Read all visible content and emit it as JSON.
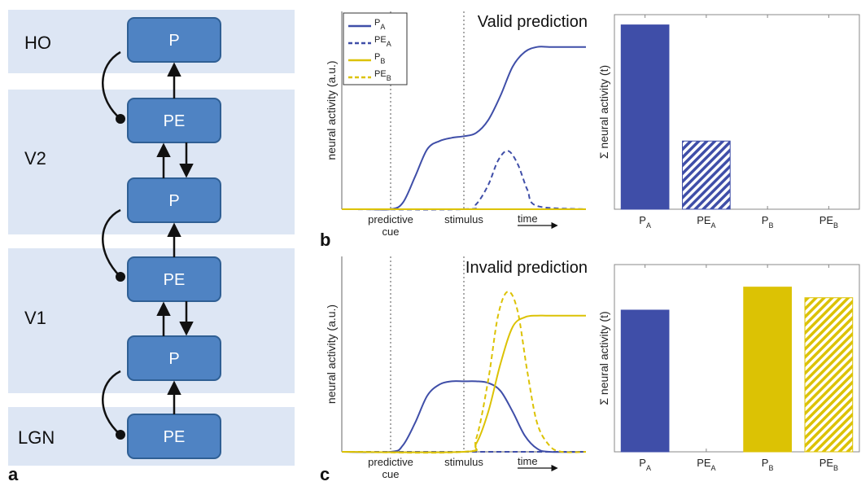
{
  "colors": {
    "band": "#dde6f4",
    "box_fill": "#4f83c3",
    "box_stroke": "#2f5f94",
    "blue": "#3f4ea8",
    "yellow": "#dcc204"
  },
  "panel_a": {
    "label": "a",
    "bands": [
      {
        "label": "HO"
      },
      {
        "label": "V2"
      },
      {
        "label": "V1"
      },
      {
        "label": "LGN"
      }
    ],
    "boxes": [
      {
        "label": "P"
      },
      {
        "label": "PE"
      },
      {
        "label": "P"
      },
      {
        "label": "PE"
      },
      {
        "label": "P"
      },
      {
        "label": "PE"
      }
    ]
  },
  "legend": {
    "entries": [
      {
        "base": "P",
        "sub": "A",
        "color": "blue",
        "style": "solid"
      },
      {
        "base": "PE",
        "sub": "A",
        "color": "blue",
        "style": "dashed"
      },
      {
        "base": "P",
        "sub": "B",
        "color": "yellow",
        "style": "solid"
      },
      {
        "base": "PE",
        "sub": "B",
        "color": "yellow",
        "style": "dashed"
      }
    ]
  },
  "chart_data": [
    {
      "type": "line",
      "panel": "b",
      "title": "Valid prediction",
      "ylabel": "neural activity (a.u.)",
      "xlabel": "time",
      "event_markers": [
        {
          "label": "predictive cue",
          "lines": [
            "predictive",
            "cue"
          ],
          "x": 0.2
        },
        {
          "label": "stimulus",
          "lines": [
            "stimulus"
          ],
          "x": 0.5
        }
      ],
      "xlim": [
        0,
        1
      ],
      "ylim": [
        0,
        1
      ],
      "series": [
        {
          "name": "P_A",
          "color": "blue",
          "dash": false,
          "x": [
            0,
            0.1,
            0.2,
            0.25,
            0.3,
            0.35,
            0.4,
            0.45,
            0.5,
            0.55,
            0.6,
            0.65,
            0.7,
            0.75,
            0.8,
            0.85,
            0.9,
            1.0
          ],
          "y": [
            0,
            0,
            0,
            0.04,
            0.2,
            0.37,
            0.42,
            0.44,
            0.45,
            0.47,
            0.55,
            0.7,
            0.88,
            0.97,
            1.0,
            1.0,
            1.0,
            1.0
          ]
        },
        {
          "name": "PE_A",
          "color": "blue",
          "dash": true,
          "x": [
            0,
            0.5,
            0.55,
            0.6,
            0.64,
            0.68,
            0.72,
            0.76,
            0.8,
            1.0
          ],
          "y": [
            0,
            0,
            0.03,
            0.15,
            0.3,
            0.36,
            0.28,
            0.12,
            0.02,
            0
          ]
        },
        {
          "name": "P_B",
          "color": "yellow",
          "dash": false,
          "x": [
            0,
            1
          ],
          "y": [
            0,
            0
          ]
        },
        {
          "name": "PE_B",
          "color": "yellow",
          "dash": true,
          "x": [
            0,
            1
          ],
          "y": [
            0,
            0
          ]
        }
      ]
    },
    {
      "type": "bar",
      "panel": "b",
      "ylabel": "Σ neural activity (t)",
      "ylim": [
        0,
        1
      ],
      "categories": [
        {
          "base": "P",
          "sub": "A"
        },
        {
          "base": "PE",
          "sub": "A"
        },
        {
          "base": "P",
          "sub": "B"
        },
        {
          "base": "PE",
          "sub": "B"
        }
      ],
      "values": [
        1.0,
        0.37,
        0,
        0
      ],
      "bar_colors": [
        "blue",
        "blue",
        "yellow",
        "yellow"
      ],
      "hatched": [
        false,
        true,
        false,
        true
      ]
    },
    {
      "type": "line",
      "panel": "c",
      "title": "Invalid prediction",
      "ylabel": "neural activity (a.u.)",
      "xlabel": "time",
      "event_markers": [
        {
          "label": "predictive cue",
          "lines": [
            "predictive",
            "cue"
          ],
          "x": 0.2
        },
        {
          "label": "stimulus",
          "lines": [
            "stimulus"
          ],
          "x": 0.5
        }
      ],
      "xlim": [
        0,
        1
      ],
      "ylim": [
        0,
        1
      ],
      "series": [
        {
          "name": "P_A",
          "color": "blue",
          "dash": false,
          "x": [
            0,
            0.2,
            0.25,
            0.3,
            0.35,
            0.4,
            0.45,
            0.5,
            0.55,
            0.6,
            0.65,
            0.7,
            0.75,
            0.8,
            0.85,
            1.0
          ],
          "y": [
            0,
            0,
            0.04,
            0.18,
            0.35,
            0.42,
            0.44,
            0.44,
            0.44,
            0.43,
            0.38,
            0.25,
            0.1,
            0.02,
            0,
            0
          ]
        },
        {
          "name": "PE_A",
          "color": "blue",
          "dash": true,
          "x": [
            0,
            0.5,
            0.8,
            1.0
          ],
          "y": [
            0,
            0,
            0,
            0
          ]
        },
        {
          "name": "P_B",
          "color": "yellow",
          "dash": false,
          "x": [
            0,
            0.5,
            0.55,
            0.6,
            0.65,
            0.7,
            0.75,
            0.8,
            0.85,
            1.0
          ],
          "y": [
            0,
            0,
            0.05,
            0.25,
            0.55,
            0.78,
            0.84,
            0.85,
            0.85,
            0.85
          ]
        },
        {
          "name": "PE_B",
          "color": "yellow",
          "dash": true,
          "x": [
            0,
            0.5,
            0.55,
            0.6,
            0.64,
            0.68,
            0.72,
            0.76,
            0.8,
            0.85,
            0.9,
            1.0
          ],
          "y": [
            0,
            0,
            0.08,
            0.45,
            0.85,
            1.0,
            0.88,
            0.5,
            0.18,
            0.04,
            0,
            0
          ]
        }
      ]
    },
    {
      "type": "bar",
      "panel": "c",
      "ylabel": "Σ neural activity (t)",
      "ylim": [
        0,
        1
      ],
      "categories": [
        {
          "base": "P",
          "sub": "A"
        },
        {
          "base": "PE",
          "sub": "A"
        },
        {
          "base": "P",
          "sub": "B"
        },
        {
          "base": "PE",
          "sub": "B"
        }
      ],
      "values": [
        0.8,
        0,
        0.93,
        0.87
      ],
      "bar_colors": [
        "blue",
        "blue",
        "yellow",
        "yellow"
      ],
      "hatched": [
        false,
        true,
        false,
        true
      ]
    }
  ],
  "panel_labels": {
    "b": "b",
    "c": "c"
  }
}
